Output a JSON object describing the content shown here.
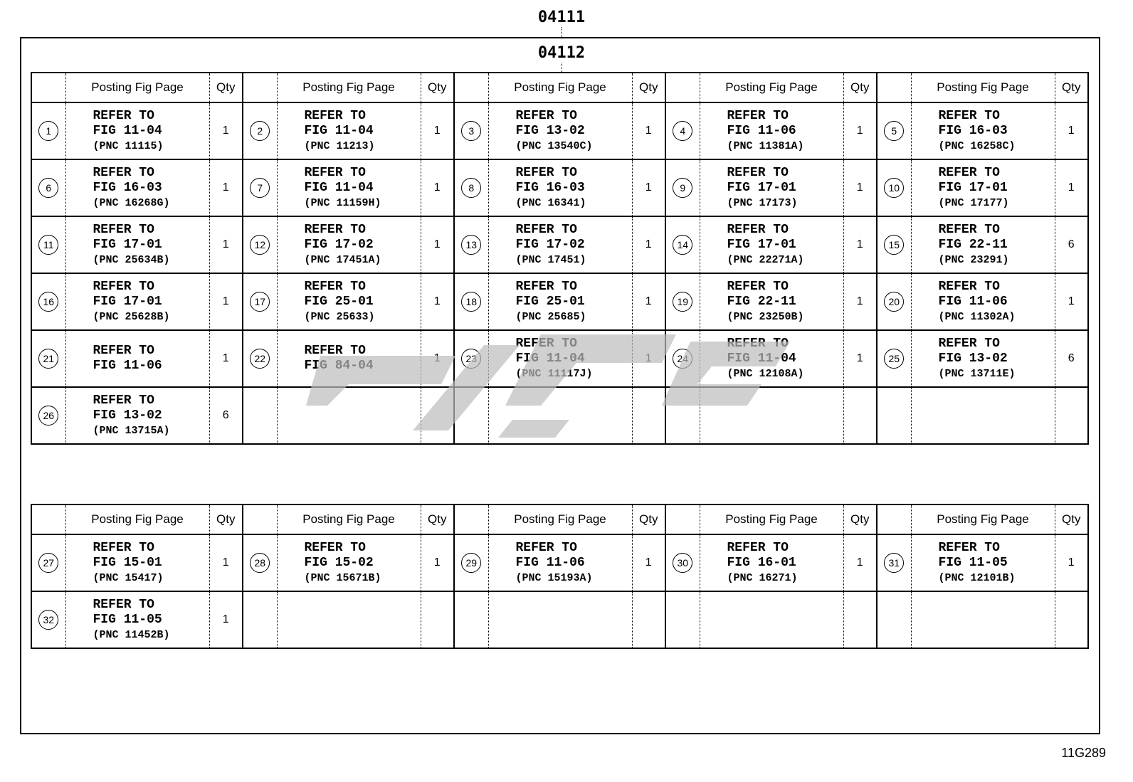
{
  "labels": {
    "top": "04111",
    "inner": "04112",
    "diagram_code": "11G289"
  },
  "header": {
    "posting": "Posting Fig Page",
    "qty": "Qty"
  },
  "watermark": {
    "color": "#bdbdbd"
  },
  "tables": [
    {
      "rows": [
        [
          {
            "no": "1",
            "l1": "REFER TO",
            "l2": "FIG 11-04",
            "pnc": "(PNC 11115)",
            "qty": "1"
          },
          {
            "no": "2",
            "l1": "REFER TO",
            "l2": "FIG 11-04",
            "pnc": "(PNC 11213)",
            "qty": "1"
          },
          {
            "no": "3",
            "l1": "REFER TO",
            "l2": "FIG 13-02",
            "pnc": "(PNC 13540C)",
            "qty": "1"
          },
          {
            "no": "4",
            "l1": "REFER TO",
            "l2": "FIG 11-06",
            "pnc": "(PNC 11381A)",
            "qty": "1"
          },
          {
            "no": "5",
            "l1": "REFER TO",
            "l2": "FIG 16-03",
            "pnc": "(PNC 16258C)",
            "qty": "1"
          }
        ],
        [
          {
            "no": "6",
            "l1": "REFER TO",
            "l2": "FIG 16-03",
            "pnc": "(PNC 16268G)",
            "qty": "1"
          },
          {
            "no": "7",
            "l1": "REFER TO",
            "l2": "FIG 11-04",
            "pnc": "(PNC 11159H)",
            "qty": "1"
          },
          {
            "no": "8",
            "l1": "REFER TO",
            "l2": "FIG 16-03",
            "pnc": "(PNC 16341)",
            "qty": "1"
          },
          {
            "no": "9",
            "l1": "REFER TO",
            "l2": "FIG 17-01",
            "pnc": "(PNC 17173)",
            "qty": "1"
          },
          {
            "no": "10",
            "l1": "REFER TO",
            "l2": "FIG 17-01",
            "pnc": "(PNC 17177)",
            "qty": "1"
          }
        ],
        [
          {
            "no": "11",
            "l1": "REFER TO",
            "l2": "FIG 17-01",
            "pnc": "(PNC 25634B)",
            "qty": "1"
          },
          {
            "no": "12",
            "l1": "REFER TO",
            "l2": "FIG 17-02",
            "pnc": "(PNC 17451A)",
            "qty": "1"
          },
          {
            "no": "13",
            "l1": "REFER TO",
            "l2": "FIG 17-02",
            "pnc": "(PNC 17451)",
            "qty": "1"
          },
          {
            "no": "14",
            "l1": "REFER TO",
            "l2": "FIG 17-01",
            "pnc": "(PNC 22271A)",
            "qty": "1"
          },
          {
            "no": "15",
            "l1": "REFER TO",
            "l2": "FIG 22-11",
            "pnc": "(PNC 23291)",
            "qty": "6"
          }
        ],
        [
          {
            "no": "16",
            "l1": "REFER TO",
            "l2": "FIG 17-01",
            "pnc": "(PNC 25628B)",
            "qty": "1"
          },
          {
            "no": "17",
            "l1": "REFER TO",
            "l2": "FIG 25-01",
            "pnc": "(PNC 25633)",
            "qty": "1"
          },
          {
            "no": "18",
            "l1": "REFER TO",
            "l2": "FIG 25-01",
            "pnc": "(PNC 25685)",
            "qty": "1"
          },
          {
            "no": "19",
            "l1": "REFER TO",
            "l2": "FIG 22-11",
            "pnc": "(PNC 23250B)",
            "qty": "1"
          },
          {
            "no": "20",
            "l1": "REFER TO",
            "l2": "FIG 11-06",
            "pnc": "(PNC 11302A)",
            "qty": "1"
          }
        ],
        [
          {
            "no": "21",
            "l1": "REFER TO",
            "l2": "FIG 11-06",
            "pnc": "",
            "qty": "1"
          },
          {
            "no": "22",
            "l1": "REFER TO",
            "l2": "FIG 84-04",
            "pnc": "",
            "qty": "1"
          },
          {
            "no": "23",
            "l1": "REFER TO",
            "l2": "FIG 11-04",
            "pnc": "(PNC 11117J)",
            "qty": "1"
          },
          {
            "no": "24",
            "l1": "REFER TO",
            "l2": "FIG 11-04",
            "pnc": "(PNC 12108A)",
            "qty": "1"
          },
          {
            "no": "25",
            "l1": "REFER TO",
            "l2": "FIG 13-02",
            "pnc": "(PNC 13711E)",
            "qty": "6"
          }
        ],
        [
          {
            "no": "26",
            "l1": "REFER TO",
            "l2": "FIG 13-02",
            "pnc": "(PNC 13715A)",
            "qty": "6"
          },
          null,
          null,
          null,
          null
        ]
      ]
    },
    {
      "rows": [
        [
          {
            "no": "27",
            "l1": "REFER TO",
            "l2": "FIG 15-01",
            "pnc": "(PNC 15417)",
            "qty": "1"
          },
          {
            "no": "28",
            "l1": "REFER TO",
            "l2": "FIG 15-02",
            "pnc": "(PNC 15671B)",
            "qty": "1"
          },
          {
            "no": "29",
            "l1": "REFER TO",
            "l2": "FIG 11-06",
            "pnc": "(PNC 15193A)",
            "qty": "1"
          },
          {
            "no": "30",
            "l1": "REFER TO",
            "l2": "FIG 16-01",
            "pnc": "(PNC 16271)",
            "qty": "1"
          },
          {
            "no": "31",
            "l1": "REFER TO",
            "l2": "FIG 11-05",
            "pnc": "(PNC 12101B)",
            "qty": "1"
          }
        ],
        [
          {
            "no": "32",
            "l1": "REFER TO",
            "l2": "FIG 11-05",
            "pnc": "(PNC 11452B)",
            "qty": "1"
          },
          null,
          null,
          null,
          null
        ]
      ]
    }
  ]
}
